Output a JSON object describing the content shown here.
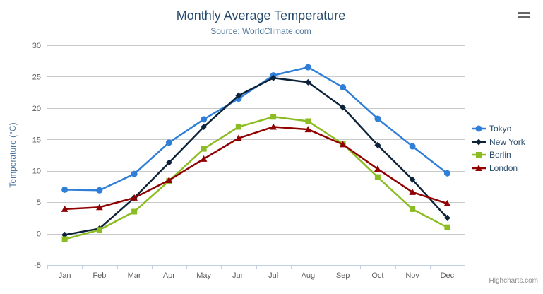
{
  "title": "Monthly Average Temperature",
  "subtitle": "Source: WorldClimate.com",
  "credits": "Highcharts.com",
  "menu": {
    "icon": "hamburger-icon"
  },
  "colors": {
    "title_text": "#274b6d",
    "subtitle_text": "#4d759e",
    "axis_label_text": "#606060",
    "axis_title_text": "#4d759e",
    "legend_text": "#274b6d",
    "gridline": "#c9c9c9",
    "axis_line": "#c0d0e0",
    "tick": "#c0d0e0",
    "credits_text": "#8f8f8f",
    "menu_icon": "#666666"
  },
  "chart_data": {
    "type": "line",
    "title": "Monthly Average Temperature",
    "subtitle": "Source: WorldClimate.com",
    "xlabel": "",
    "ylabel": "Temperature (°C)",
    "ylim": [
      -5,
      30
    ],
    "y_tick_interval": 5,
    "y_ticks": [
      -5,
      0,
      5,
      10,
      15,
      20,
      25,
      30
    ],
    "grid": true,
    "legend_position": "right",
    "categories": [
      "Jan",
      "Feb",
      "Mar",
      "Apr",
      "May",
      "Jun",
      "Jul",
      "Aug",
      "Sep",
      "Oct",
      "Nov",
      "Dec"
    ],
    "series": [
      {
        "name": "Tokyo",
        "color": "#2f7ed8",
        "marker": "circle",
        "values": [
          7.0,
          6.9,
          9.5,
          14.5,
          18.2,
          21.5,
          25.2,
          26.5,
          23.3,
          18.3,
          13.9,
          9.6
        ]
      },
      {
        "name": "New York",
        "color": "#0d233a",
        "marker": "diamond",
        "values": [
          -0.2,
          0.8,
          5.7,
          11.3,
          17.0,
          22.0,
          24.8,
          24.1,
          20.1,
          14.1,
          8.6,
          2.5
        ]
      },
      {
        "name": "Berlin",
        "color": "#8bbc21",
        "marker": "square",
        "values": [
          -0.9,
          0.6,
          3.5,
          8.4,
          13.5,
          17.0,
          18.6,
          17.9,
          14.3,
          9.0,
          3.9,
          1.0
        ]
      },
      {
        "name": "London",
        "color": "#910000",
        "marker": "triangle",
        "values": [
          3.9,
          4.2,
          5.7,
          8.5,
          11.9,
          15.2,
          17.0,
          16.6,
          14.2,
          10.3,
          6.6,
          4.8
        ]
      }
    ]
  }
}
